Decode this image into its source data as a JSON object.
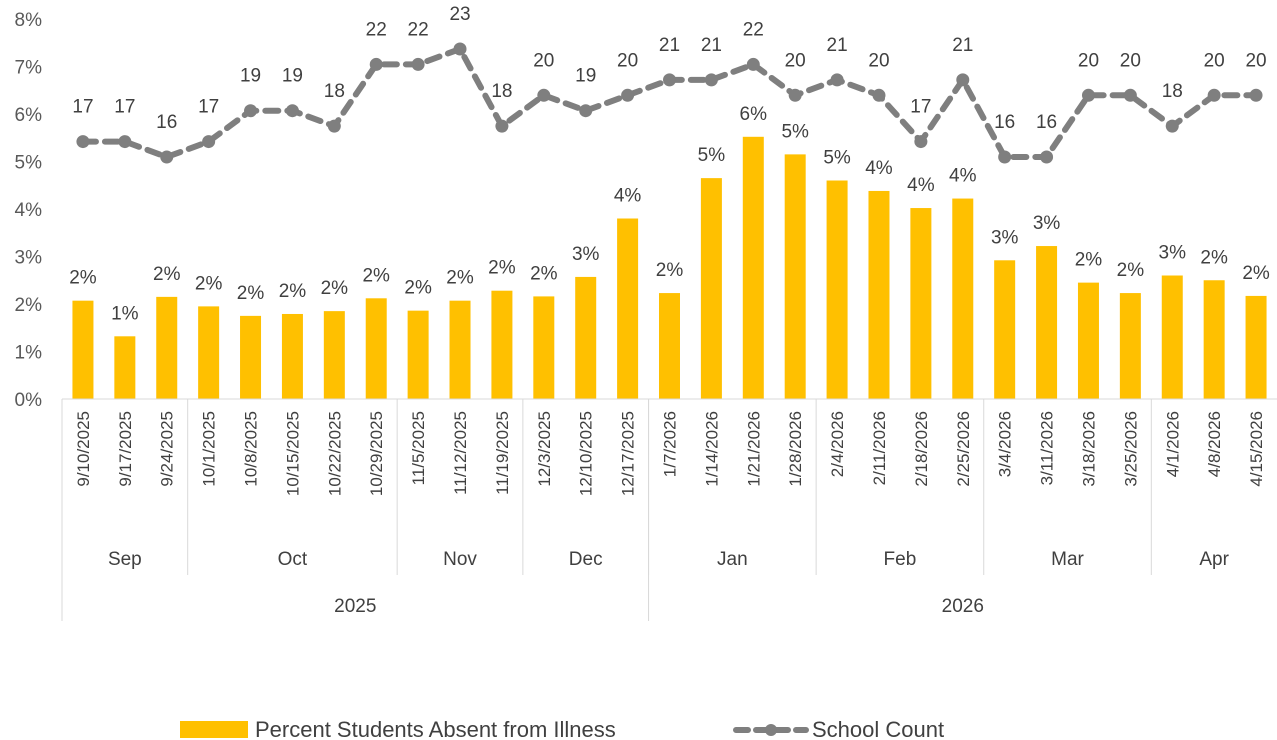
{
  "chart_data": {
    "type": "bar",
    "title": "",
    "ylim": [
      0,
      8
    ],
    "y_ticks": [
      "0%",
      "1%",
      "2%",
      "3%",
      "4%",
      "5%",
      "6%",
      "7%",
      "8%"
    ],
    "grid": false,
    "legend_position": "bottom",
    "categories": [
      "9/10/2025",
      "9/17/2025",
      "9/24/2025",
      "10/1/2025",
      "10/8/2025",
      "10/15/2025",
      "10/22/2025",
      "10/29/2025",
      "11/5/2025",
      "11/12/2025",
      "11/19/2025",
      "12/3/2025",
      "12/10/2025",
      "12/17/2025",
      "1/7/2026",
      "1/14/2026",
      "1/21/2026",
      "1/28/2026",
      "2/4/2026",
      "2/11/2026",
      "2/18/2026",
      "2/25/2026",
      "3/4/2026",
      "3/11/2026",
      "3/18/2026",
      "3/25/2026",
      "4/1/2026",
      "4/8/2026",
      "4/15/2026"
    ],
    "month_groups": [
      {
        "label": "Sep",
        "count": 3
      },
      {
        "label": "Oct",
        "count": 5
      },
      {
        "label": "Nov",
        "count": 3
      },
      {
        "label": "Dec",
        "count": 3
      },
      {
        "label": "Jan",
        "count": 4
      },
      {
        "label": "Feb",
        "count": 4
      },
      {
        "label": "Mar",
        "count": 4
      },
      {
        "label": "Apr",
        "count": 3
      }
    ],
    "year_groups": [
      {
        "label": "2025",
        "count": 14
      },
      {
        "label": "2026",
        "count": 15
      }
    ],
    "series": [
      {
        "name": "Percent Students Absent from Illness",
        "kind": "bar",
        "color": "#FFC000",
        "values": [
          2.07,
          1.32,
          2.15,
          1.95,
          1.75,
          1.79,
          1.85,
          2.12,
          1.86,
          2.07,
          2.28,
          2.16,
          2.57,
          3.8,
          2.23,
          4.65,
          5.52,
          5.15,
          4.6,
          4.38,
          4.02,
          4.22,
          2.92,
          3.22,
          2.45,
          2.23,
          2.6,
          2.5,
          2.17
        ],
        "labels": [
          "2%",
          "1%",
          "2%",
          "2%",
          "2%",
          "2%",
          "2%",
          "2%",
          "2%",
          "2%",
          "2%",
          "2%",
          "3%",
          "4%",
          "2%",
          "5%",
          "6%",
          "5%",
          "5%",
          "4%",
          "4%",
          "4%",
          "3%",
          "3%",
          "2%",
          "2%",
          "3%",
          "2%",
          "2%"
        ]
      },
      {
        "name": "School Count",
        "kind": "line",
        "style": "dashed-with-markers",
        "color": "#7F7F7F",
        "values": [
          17,
          17,
          16,
          17,
          19,
          19,
          18,
          22,
          22,
          23,
          18,
          20,
          19,
          20,
          21,
          21,
          22,
          20,
          21,
          20,
          17,
          21,
          16,
          16,
          20,
          20,
          18,
          20,
          20
        ]
      }
    ]
  }
}
